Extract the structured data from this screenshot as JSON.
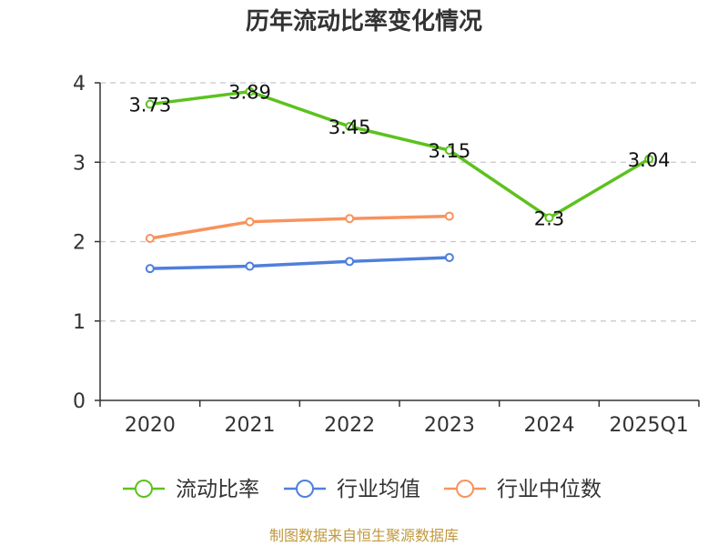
{
  "chart_data": {
    "type": "line",
    "title": "历年流动比率变化情况",
    "categories": [
      "2020",
      "2021",
      "2022",
      "2023",
      "2024",
      "2025Q1"
    ],
    "ylim": [
      0,
      4
    ],
    "yticks": [
      0,
      1,
      2,
      3,
      4
    ],
    "grid": true,
    "legend_position": "bottom",
    "series": [
      {
        "name": "流动比率",
        "color": "#5cc21e",
        "values": [
          3.73,
          3.89,
          3.45,
          3.15,
          2.3,
          3.04
        ],
        "labels": [
          "3.73",
          "3.89",
          "3.45",
          "3.15",
          "2.3",
          "3.04"
        ]
      },
      {
        "name": "行业均值",
        "color": "#4f7fdb",
        "values": [
          1.66,
          1.69,
          1.75,
          1.8,
          null,
          null
        ]
      },
      {
        "name": "行业中位数",
        "color": "#f7935d",
        "values": [
          2.04,
          2.25,
          2.29,
          2.32,
          null,
          null
        ]
      }
    ]
  },
  "footer": {
    "source": "制图数据来自恒生聚源数据库"
  }
}
